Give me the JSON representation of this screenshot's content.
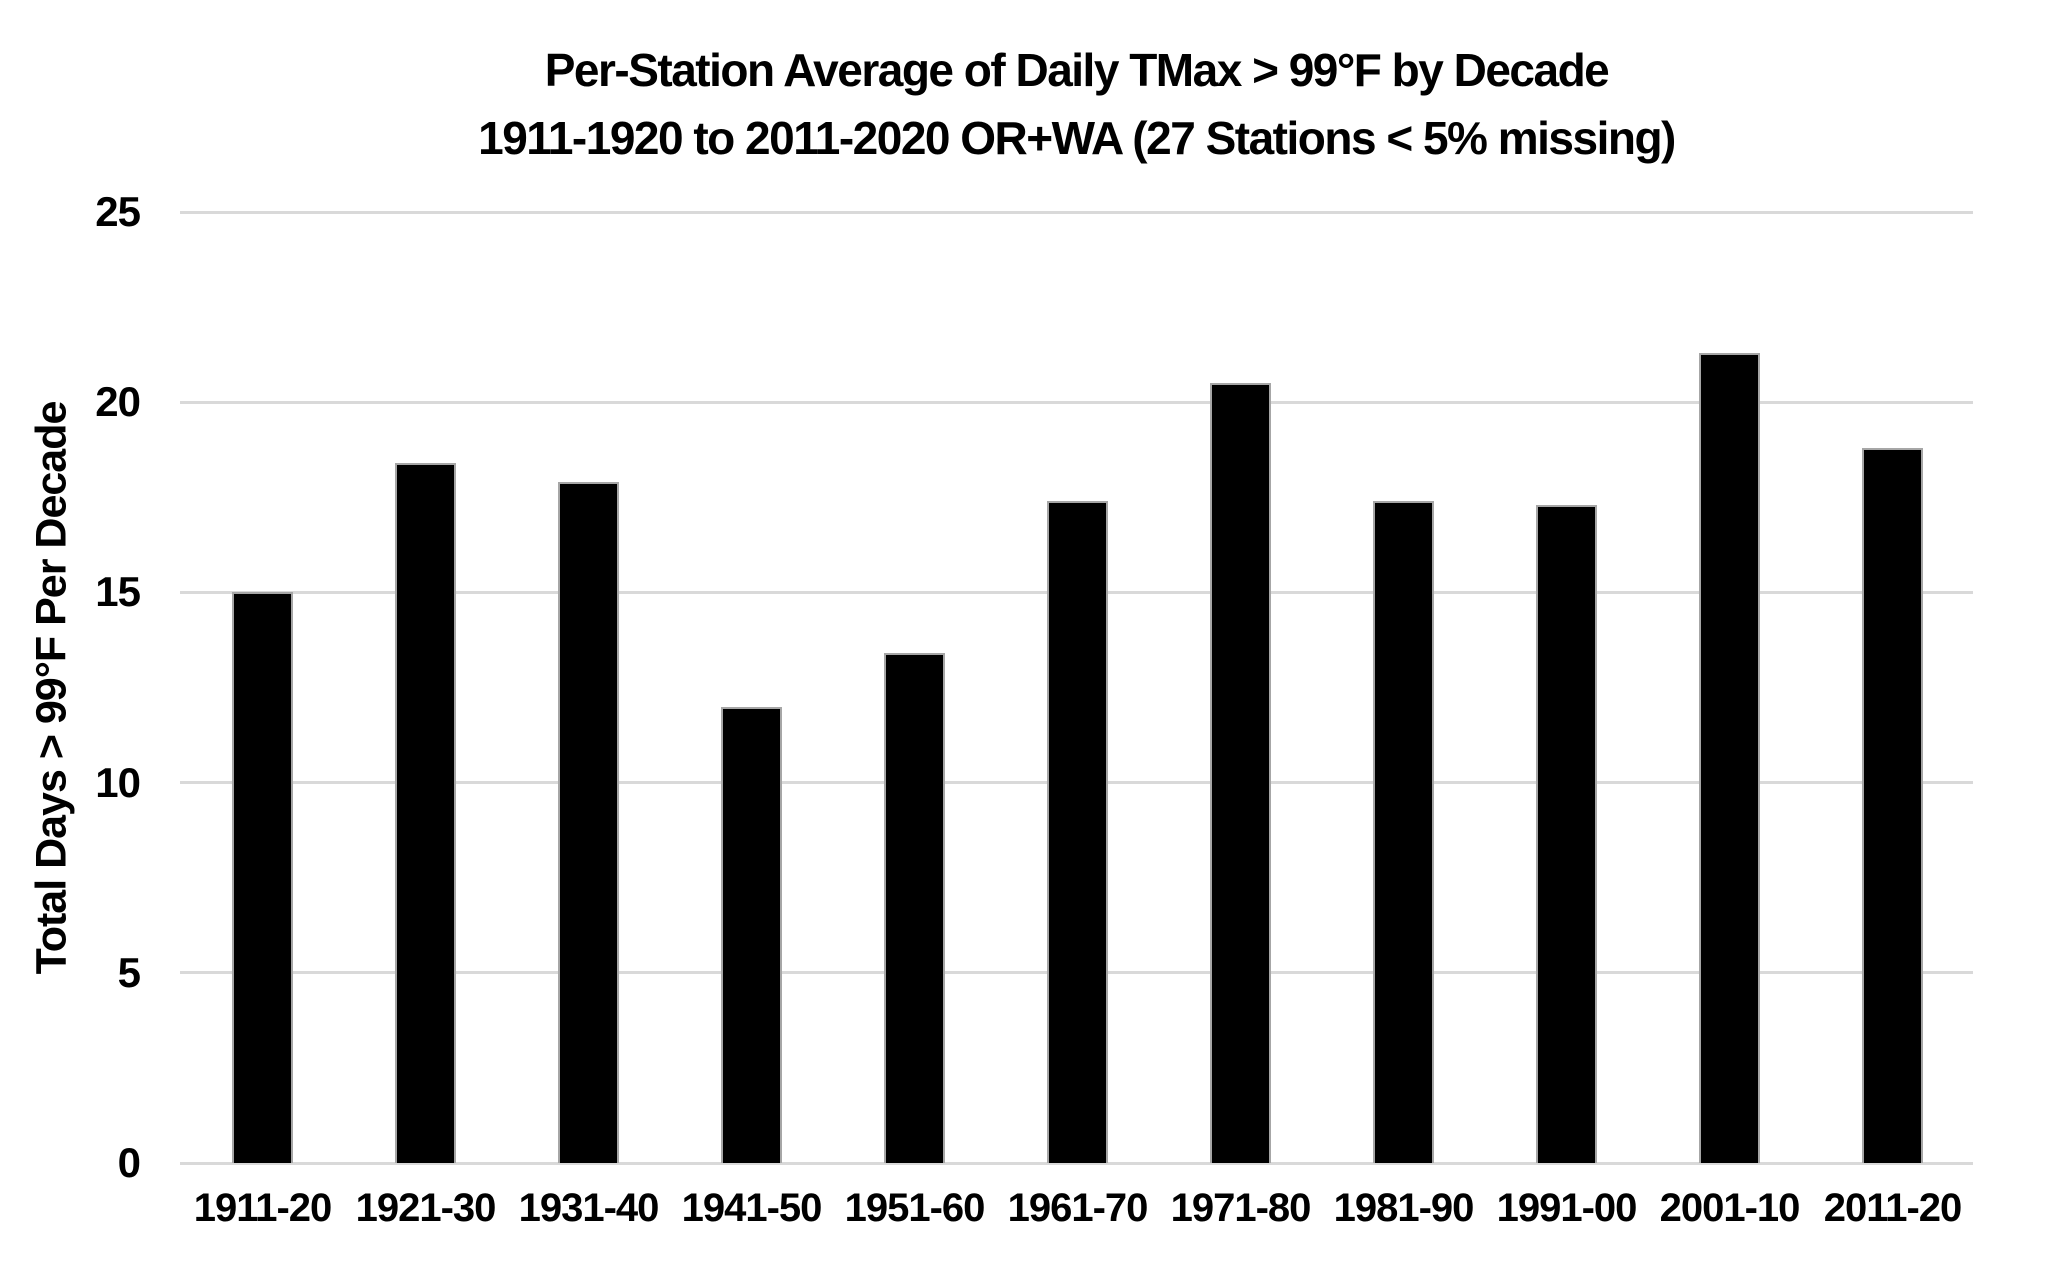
{
  "chart_data": {
    "type": "bar",
    "title_line1": "Per-Station Average of Daily TMax > 99°F by Decade",
    "title_line2": "1911-1920 to 2011-2020 OR+WA (27 Stations < 5% missing)",
    "ylabel": "Total Days > 99°F Per Decade",
    "xlabel": "",
    "categories": [
      "1911-20",
      "1921-30",
      "1931-40",
      "1941-50",
      "1951-60",
      "1961-70",
      "1971-80",
      "1981-90",
      "1991-00",
      "2001-10",
      "2011-20"
    ],
    "values": [
      15.0,
      18.4,
      17.9,
      12.0,
      13.4,
      17.4,
      20.5,
      17.4,
      17.3,
      21.3,
      18.8
    ],
    "ylim": [
      0,
      25
    ],
    "yticks": [
      0,
      5,
      10,
      15,
      20,
      25
    ],
    "legend": null,
    "grid": "horizontal-only",
    "colors": {
      "bar_fill": "#000000",
      "bar_border": "#a6a6a6",
      "gridline": "#d9d9d9",
      "text": "#000000",
      "background": "#ffffff"
    }
  }
}
